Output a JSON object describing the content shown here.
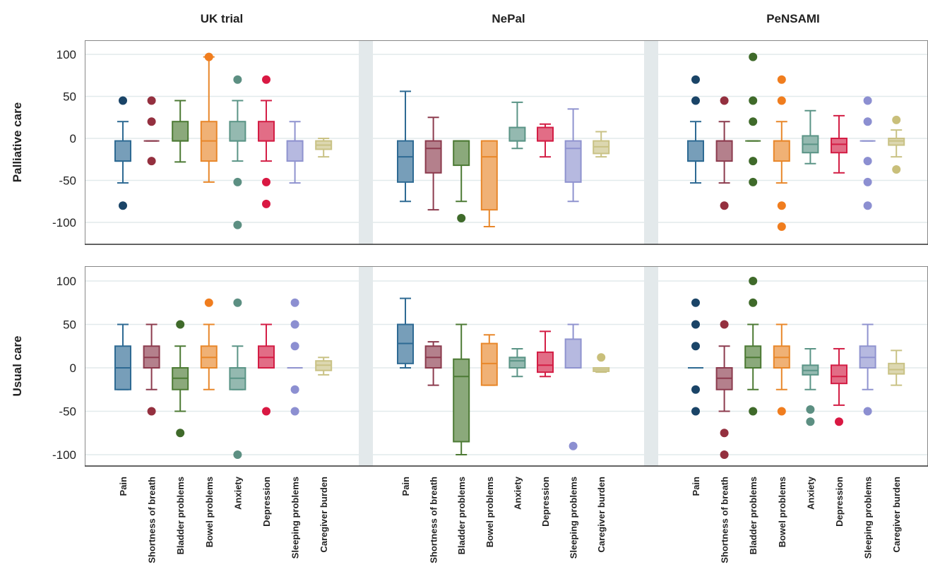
{
  "chart_data": {
    "type": "boxplot",
    "panels": [
      "UK trial",
      "NePal",
      "PeNSAMI"
    ],
    "rows": [
      "Palliative care",
      "Usual care"
    ],
    "categories": [
      "Pain",
      "Shortness of breath",
      "Bladder problems",
      "Bowel problems",
      "Anxiety",
      "Depression",
      "Sleeping problems",
      "Caregiver burden"
    ],
    "colors": {
      "Pain": "#2e6a93",
      "Shortness of breath": "#8c3b4e",
      "Bladder problems": "#4c7a34",
      "Bowel problems": "#e8872a",
      "Anxiety": "#5a9486",
      "Depression": "#d31e45",
      "Sleeping problems": "#8f93cf",
      "Caregiver burden": "#c9c285"
    },
    "outlier_colors": {
      "Pain": "#1a4467",
      "Shortness of breath": "#94303f",
      "Bladder problems": "#3f6a2a",
      "Bowel problems": "#f07d1e",
      "Anxiety": "#5c8f82",
      "Depression": "#d91842",
      "Sleeping problems": "#8c8fd1",
      "Caregiver burden": "#c9bf7a"
    },
    "y_ticks": [
      100,
      50,
      0,
      -50,
      -100
    ],
    "ylim": [
      -120,
      115
    ],
    "data": [
      [
        [
          {
            "min": -53,
            "q1": -27,
            "median": -27,
            "q3": -3,
            "max": 20,
            "outliers": [
              45,
              -80
            ]
          },
          {
            "min": -3,
            "q1": -3,
            "median": -3,
            "q3": -3,
            "max": -3,
            "outliers": [
              45,
              20,
              -27
            ]
          },
          {
            "min": -28,
            "q1": -3,
            "median": -3,
            "q3": 20,
            "max": 45,
            "outliers": []
          },
          {
            "min": -52,
            "q1": -27,
            "median": -3,
            "q3": 20,
            "max": 97,
            "outliers": [
              97
            ]
          },
          {
            "min": -27,
            "q1": -3,
            "median": -3,
            "q3": 20,
            "max": 45,
            "outliers": [
              70,
              -52,
              -103
            ]
          },
          {
            "min": -27,
            "q1": -3,
            "median": -3,
            "q3": 20,
            "max": 45,
            "outliers": [
              70,
              -52,
              -78
            ]
          },
          {
            "min": -53,
            "q1": -27,
            "median": -3,
            "q3": -3,
            "max": 20,
            "outliers": []
          },
          {
            "min": -22,
            "q1": -13,
            "median": -8,
            "q3": -3,
            "max": 0,
            "outliers": []
          }
        ],
        [
          {
            "min": -75,
            "q1": -52,
            "median": -22,
            "q3": -3,
            "max": 56,
            "outliers": []
          },
          {
            "min": -85,
            "q1": -41,
            "median": -12,
            "q3": -3,
            "max": 25,
            "outliers": []
          },
          {
            "min": -75,
            "q1": -32,
            "median": -3,
            "q3": -3,
            "max": -3,
            "outliers": [
              -95
            ]
          },
          {
            "min": -105,
            "q1": -85,
            "median": -22,
            "q3": -3,
            "max": -3,
            "outliers": []
          },
          {
            "min": -12,
            "q1": -3,
            "median": -3,
            "q3": 13,
            "max": 43,
            "outliers": []
          },
          {
            "min": -22,
            "q1": -3,
            "median": -3,
            "q3": 13,
            "max": 17,
            "outliers": []
          },
          {
            "min": -75,
            "q1": -52,
            "median": -12,
            "q3": -3,
            "max": 35,
            "outliers": []
          },
          {
            "min": -22,
            "q1": -18,
            "median": -10,
            "q3": -3,
            "max": 8,
            "outliers": []
          }
        ],
        [
          {
            "min": -53,
            "q1": -27,
            "median": -27,
            "q3": -3,
            "max": 20,
            "outliers": [
              70,
              45
            ]
          },
          {
            "min": -53,
            "q1": -27,
            "median": -3,
            "q3": -3,
            "max": 20,
            "outliers": [
              45,
              -80
            ]
          },
          {
            "min": -3,
            "q1": -3,
            "median": -3,
            "q3": -3,
            "max": -3,
            "outliers": [
              97,
              45,
              20,
              -27,
              -52
            ]
          },
          {
            "min": -53,
            "q1": -27,
            "median": -3,
            "q3": -3,
            "max": 20,
            "outliers": [
              70,
              45,
              -80,
              -105
            ]
          },
          {
            "min": -30,
            "q1": -17,
            "median": -7,
            "q3": 3,
            "max": 33,
            "outliers": []
          },
          {
            "min": -41,
            "q1": -17,
            "median": -7,
            "q3": 0,
            "max": 27,
            "outliers": []
          },
          {
            "min": -3,
            "q1": -3,
            "median": -3,
            "q3": -3,
            "max": -3,
            "outliers": [
              45,
              20,
              -27,
              -52,
              -80
            ]
          },
          {
            "min": -22,
            "q1": -8,
            "median": -3,
            "q3": 0,
            "max": 10,
            "outliers": [
              22,
              -37
            ]
          }
        ]
      ],
      [
        [
          {
            "min": -25,
            "q1": -25,
            "median": 0,
            "q3": 25,
            "max": 50,
            "outliers": []
          },
          {
            "min": -25,
            "q1": 0,
            "median": 12,
            "q3": 25,
            "max": 50,
            "outliers": [
              -50
            ]
          },
          {
            "min": -50,
            "q1": -25,
            "median": -12,
            "q3": 0,
            "max": 25,
            "outliers": [
              50,
              -75
            ]
          },
          {
            "min": -25,
            "q1": 0,
            "median": 12,
            "q3": 25,
            "max": 50,
            "outliers": [
              75
            ]
          },
          {
            "min": -25,
            "q1": -25,
            "median": -12,
            "q3": 0,
            "max": 25,
            "outliers": [
              75,
              -100
            ]
          },
          {
            "min": 0,
            "q1": 0,
            "median": 12,
            "q3": 25,
            "max": 50,
            "outliers": [
              -50
            ]
          },
          {
            "min": 0,
            "q1": 0,
            "median": 0,
            "q3": 0,
            "max": 0,
            "outliers": [
              75,
              50,
              25,
              -25,
              -50
            ]
          },
          {
            "min": -8,
            "q1": -3,
            "median": 3,
            "q3": 8,
            "max": 12,
            "outliers": []
          }
        ],
        [
          {
            "min": 0,
            "q1": 5,
            "median": 28,
            "q3": 50,
            "max": 80,
            "outliers": []
          },
          {
            "min": -20,
            "q1": 0,
            "median": 12,
            "q3": 25,
            "max": 30,
            "outliers": []
          },
          {
            "min": -100,
            "q1": -85,
            "median": -10,
            "q3": 10,
            "max": 50,
            "outliers": []
          },
          {
            "min": -20,
            "q1": -20,
            "median": 5,
            "q3": 28,
            "max": 38,
            "outliers": []
          },
          {
            "min": -10,
            "q1": 0,
            "median": 8,
            "q3": 12,
            "max": 22,
            "outliers": []
          },
          {
            "min": -10,
            "q1": -5,
            "median": 3,
            "q3": 18,
            "max": 42,
            "outliers": []
          },
          {
            "min": 0,
            "q1": 0,
            "median": 0,
            "q3": 33,
            "max": 50,
            "outliers": [
              -90
            ]
          },
          {
            "min": -5,
            "q1": -4,
            "median": -2,
            "q3": 0,
            "max": 0,
            "outliers": [
              12
            ]
          }
        ],
        [
          {
            "min": 0,
            "q1": 0,
            "median": 0,
            "q3": 0,
            "max": 0,
            "outliers": [
              75,
              50,
              25,
              -25,
              -50
            ]
          },
          {
            "min": -50,
            "q1": -25,
            "median": -12,
            "q3": 0,
            "max": 25,
            "outliers": [
              50,
              -75,
              -100
            ]
          },
          {
            "min": -25,
            "q1": 0,
            "median": 12,
            "q3": 25,
            "max": 50,
            "outliers": [
              100,
              75,
              -50
            ]
          },
          {
            "min": -25,
            "q1": 0,
            "median": 12,
            "q3": 25,
            "max": 50,
            "outliers": [
              -50
            ]
          },
          {
            "min": -25,
            "q1": -8,
            "median": -3,
            "q3": 3,
            "max": 22,
            "outliers": [
              -48,
              -62
            ]
          },
          {
            "min": -43,
            "q1": -18,
            "median": -10,
            "q3": 3,
            "max": 22,
            "outliers": [
              -62
            ]
          },
          {
            "min": -25,
            "q1": 0,
            "median": 12,
            "q3": 25,
            "max": 50,
            "outliers": [
              -50
            ]
          },
          {
            "min": -20,
            "q1": -7,
            "median": -2,
            "q3": 5,
            "max": 20,
            "outliers": []
          }
        ]
      ]
    ]
  }
}
